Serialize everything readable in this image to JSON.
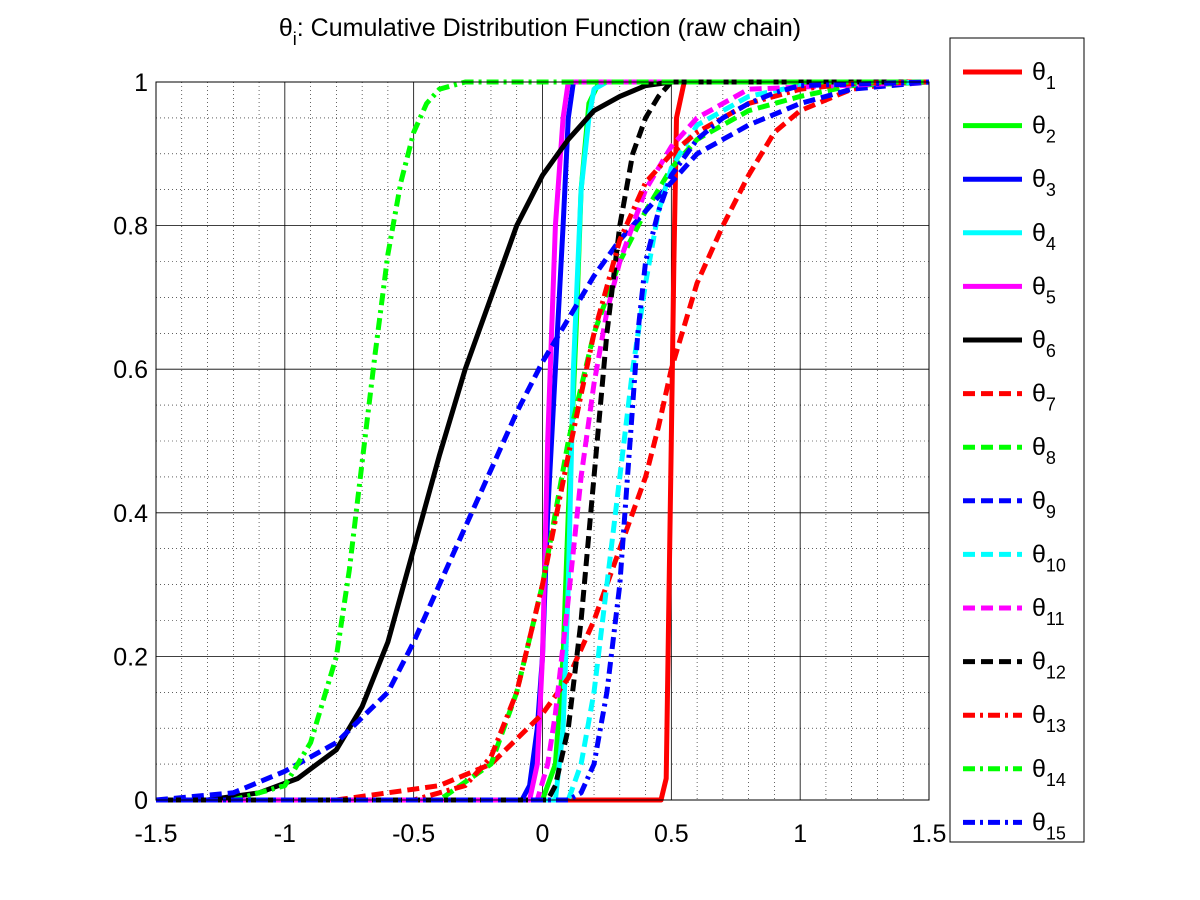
{
  "chart_data": {
    "type": "line",
    "title": {
      "base": "θ",
      "subscript": "i",
      "rest": ": Cumulative Distribution Function (raw chain)"
    },
    "xlabel": "",
    "ylabel": "",
    "xlim": [
      -1.5,
      1.5
    ],
    "ylim": [
      0,
      1
    ],
    "xticks": [
      -1.5,
      -1,
      -0.5,
      0,
      0.5,
      1,
      1.5
    ],
    "xtick_labels": [
      "-1.5",
      "-1",
      "-0.5",
      "0",
      "0.5",
      "1",
      "1.5"
    ],
    "yticks": [
      0,
      0.2,
      0.4,
      0.6,
      0.8,
      1
    ],
    "ytick_labels": [
      "0",
      "0.2",
      "0.4",
      "0.6",
      "0.8",
      "1"
    ],
    "grid": "major-and-minor",
    "legend_position": "outside-right",
    "series": [
      {
        "name": "θ",
        "sub": "1",
        "color": "#ff0000",
        "style": "solid",
        "x": [
          -1.5,
          0.46,
          0.48,
          0.5,
          0.51,
          0.52,
          0.55,
          1.5
        ],
        "y": [
          0,
          0,
          0.03,
          0.5,
          0.75,
          0.95,
          1,
          1
        ]
      },
      {
        "name": "θ",
        "sub": "2",
        "color": "#00ff00",
        "style": "solid",
        "x": [
          -1.5,
          0.0,
          0.05,
          0.08,
          0.1,
          0.13,
          0.15,
          0.18,
          0.22,
          1.5
        ],
        "y": [
          0,
          0,
          0.05,
          0.2,
          0.4,
          0.65,
          0.85,
          0.97,
          1,
          1
        ]
      },
      {
        "name": "θ",
        "sub": "3",
        "color": "#0000ff",
        "style": "solid",
        "x": [
          -1.5,
          -0.08,
          -0.05,
          -0.02,
          0.0,
          0.02,
          0.05,
          0.08,
          0.1,
          0.12,
          1.5
        ],
        "y": [
          0,
          0,
          0.02,
          0.1,
          0.2,
          0.4,
          0.6,
          0.8,
          0.95,
          1,
          1
        ]
      },
      {
        "name": "θ",
        "sub": "4",
        "color": "#00ffff",
        "style": "solid",
        "x": [
          -1.5,
          0.05,
          0.08,
          0.1,
          0.12,
          0.15,
          0.18,
          0.2,
          0.25,
          1.5
        ],
        "y": [
          0,
          0,
          0.1,
          0.3,
          0.6,
          0.85,
          0.95,
          0.99,
          1,
          1
        ]
      },
      {
        "name": "θ",
        "sub": "5",
        "color": "#ff00ff",
        "style": "solid",
        "x": [
          -1.5,
          -0.05,
          -0.02,
          0.0,
          0.02,
          0.05,
          0.08,
          0.1,
          1.5
        ],
        "y": [
          0,
          0,
          0.05,
          0.2,
          0.5,
          0.8,
          0.95,
          1,
          1
        ]
      },
      {
        "name": "θ",
        "sub": "6",
        "color": "#000000",
        "style": "solid",
        "x": [
          -1.5,
          -1.3,
          -1.1,
          -0.95,
          -0.8,
          -0.7,
          -0.6,
          -0.5,
          -0.4,
          -0.3,
          -0.2,
          -0.1,
          0.0,
          0.1,
          0.2,
          0.3,
          0.4,
          0.5,
          1.5
        ],
        "y": [
          0,
          0,
          0.01,
          0.03,
          0.07,
          0.13,
          0.22,
          0.35,
          0.48,
          0.6,
          0.7,
          0.8,
          0.87,
          0.92,
          0.96,
          0.98,
          0.995,
          1,
          1
        ]
      },
      {
        "name": "θ",
        "sub": "7",
        "color": "#ff0000",
        "style": "dash",
        "x": [
          -1.5,
          -0.8,
          -0.4,
          -0.2,
          0.0,
          0.1,
          0.2,
          0.3,
          0.4,
          0.45,
          0.5,
          0.55,
          0.6,
          0.7,
          0.8,
          0.9,
          1.0,
          1.2,
          1.4,
          1.5
        ],
        "y": [
          0,
          0,
          0.02,
          0.05,
          0.12,
          0.17,
          0.25,
          0.35,
          0.45,
          0.52,
          0.6,
          0.66,
          0.72,
          0.8,
          0.87,
          0.93,
          0.96,
          0.99,
          1,
          1
        ]
      },
      {
        "name": "θ",
        "sub": "8",
        "color": "#00ff00",
        "style": "dash",
        "x": [
          -1.5,
          -0.4,
          -0.2,
          -0.1,
          0.0,
          0.1,
          0.2,
          0.3,
          0.4,
          0.5,
          0.6,
          0.8,
          1.0,
          1.2,
          1.5
        ],
        "y": [
          0,
          0,
          0.05,
          0.15,
          0.3,
          0.5,
          0.65,
          0.75,
          0.82,
          0.88,
          0.92,
          0.96,
          0.98,
          0.995,
          1
        ]
      },
      {
        "name": "θ",
        "sub": "9",
        "color": "#0000ff",
        "style": "dash",
        "x": [
          -1.5,
          -1.2,
          -1.0,
          -0.8,
          -0.6,
          -0.5,
          -0.4,
          -0.3,
          -0.2,
          -0.1,
          0.0,
          0.1,
          0.2,
          0.3,
          0.4,
          0.5,
          0.6,
          0.8,
          1.0,
          1.2,
          1.5
        ],
        "y": [
          0,
          0.01,
          0.04,
          0.08,
          0.15,
          0.22,
          0.3,
          0.38,
          0.46,
          0.54,
          0.61,
          0.67,
          0.73,
          0.78,
          0.82,
          0.86,
          0.9,
          0.94,
          0.97,
          0.99,
          1
        ]
      },
      {
        "name": "θ",
        "sub": "10",
        "color": "#00ffff",
        "style": "dash",
        "x": [
          -1.5,
          0.1,
          0.15,
          0.2,
          0.25,
          0.3,
          0.35,
          0.4,
          0.45,
          0.5,
          0.6,
          0.8,
          1.0,
          1.5
        ],
        "y": [
          0,
          0,
          0.05,
          0.15,
          0.3,
          0.45,
          0.6,
          0.72,
          0.82,
          0.88,
          0.94,
          0.98,
          0.995,
          1
        ]
      },
      {
        "name": "θ",
        "sub": "11",
        "color": "#ff00ff",
        "style": "dash",
        "x": [
          -1.5,
          -0.02,
          0.02,
          0.05,
          0.1,
          0.15,
          0.2,
          0.25,
          0.3,
          0.35,
          0.4,
          0.5,
          0.6,
          0.8,
          1.5
        ],
        "y": [
          0,
          0,
          0.05,
          0.12,
          0.28,
          0.45,
          0.58,
          0.68,
          0.75,
          0.8,
          0.85,
          0.91,
          0.95,
          0.99,
          1
        ]
      },
      {
        "name": "θ",
        "sub": "12",
        "color": "#000000",
        "style": "dash",
        "x": [
          -1.5,
          0.02,
          0.05,
          0.1,
          0.15,
          0.2,
          0.25,
          0.3,
          0.35,
          0.4,
          0.45,
          0.5,
          1.5
        ],
        "y": [
          0,
          0,
          0.02,
          0.1,
          0.25,
          0.45,
          0.65,
          0.8,
          0.9,
          0.95,
          0.98,
          1,
          1
        ]
      },
      {
        "name": "θ",
        "sub": "13",
        "color": "#ff0000",
        "style": "dashdot",
        "x": [
          -1.5,
          -0.5,
          -0.3,
          -0.2,
          -0.1,
          0.0,
          0.1,
          0.2,
          0.3,
          0.4,
          0.5,
          0.6,
          0.7,
          0.8,
          1.0,
          1.2,
          1.5
        ],
        "y": [
          0,
          0,
          0.02,
          0.06,
          0.15,
          0.3,
          0.48,
          0.65,
          0.78,
          0.86,
          0.9,
          0.93,
          0.95,
          0.97,
          0.99,
          0.998,
          1
        ]
      },
      {
        "name": "θ",
        "sub": "14",
        "color": "#00ff00",
        "style": "dashdot",
        "x": [
          -1.5,
          -1.2,
          -1.0,
          -0.9,
          -0.8,
          -0.75,
          -0.7,
          -0.65,
          -0.6,
          -0.55,
          -0.5,
          -0.45,
          -0.4,
          -0.3,
          -0.2,
          1.5
        ],
        "y": [
          0,
          0,
          0.02,
          0.08,
          0.2,
          0.32,
          0.47,
          0.62,
          0.76,
          0.86,
          0.93,
          0.97,
          0.99,
          1,
          1,
          1
        ]
      },
      {
        "name": "θ",
        "sub": "15",
        "color": "#0000ff",
        "style": "dashdot",
        "x": [
          -1.5,
          0.1,
          0.15,
          0.2,
          0.25,
          0.3,
          0.33,
          0.35,
          0.37,
          0.4,
          0.45,
          0.5,
          0.6,
          0.7,
          0.8,
          0.9,
          1.0,
          1.5
        ],
        "y": [
          0,
          0,
          0.01,
          0.05,
          0.15,
          0.3,
          0.45,
          0.55,
          0.65,
          0.75,
          0.82,
          0.87,
          0.92,
          0.95,
          0.97,
          0.985,
          0.995,
          1
        ]
      }
    ]
  }
}
